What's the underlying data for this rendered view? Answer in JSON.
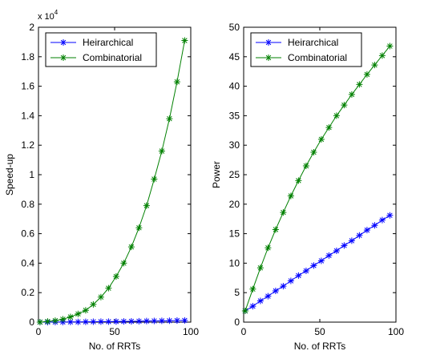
{
  "chart_data": [
    {
      "type": "line",
      "xlabel": "No. of RRTs",
      "ylabel": "Speed-up",
      "xlim": [
        0,
        100
      ],
      "ylim": [
        0,
        20000
      ],
      "y_multiplier_label": "x 10",
      "y_multiplier_exponent": "4",
      "xticks": [
        0,
        50,
        100
      ],
      "xtick_labels": [
        "0",
        "50",
        "100"
      ],
      "yticks": [
        0,
        2000,
        4000,
        6000,
        8000,
        10000,
        12000,
        14000,
        16000,
        18000,
        20000
      ],
      "ytick_labels": [
        "0",
        "0.2",
        "0.4",
        "0.6",
        "0.8",
        "1",
        "1.2",
        "1.4",
        "1.6",
        "1.8",
        "2"
      ],
      "grid": false,
      "legend_position": "top-left",
      "x": [
        1,
        6,
        11,
        16,
        21,
        26,
        31,
        36,
        41,
        46,
        51,
        56,
        61,
        66,
        71,
        76,
        81,
        86,
        91,
        96
      ],
      "series": [
        {
          "name": "Heirarchical",
          "color": "#0000ff",
          "marker": "asterisk",
          "values": [
            0,
            2,
            4,
            7,
            11,
            15,
            20,
            25,
            31,
            37,
            43,
            50,
            57,
            64,
            72,
            80,
            88,
            97,
            106,
            115
          ]
        },
        {
          "name": "Combinatorial",
          "color": "#008000",
          "marker": "asterisk",
          "values": [
            0,
            50,
            100,
            200,
            350,
            560,
            800,
            1200,
            1700,
            2300,
            3100,
            4000,
            5100,
            6400,
            7900,
            9700,
            11600,
            13800,
            16300,
            19100
          ]
        }
      ]
    },
    {
      "type": "line",
      "xlabel": "No. of RRTs",
      "ylabel": "Power",
      "xlim": [
        0,
        100
      ],
      "ylim": [
        0,
        50
      ],
      "xticks": [
        0,
        50,
        100
      ],
      "xtick_labels": [
        "0",
        "50",
        "100"
      ],
      "yticks": [
        0,
        5,
        10,
        15,
        20,
        25,
        30,
        35,
        40,
        45,
        50
      ],
      "ytick_labels": [
        "0",
        "5",
        "10",
        "15",
        "20",
        "25",
        "30",
        "35",
        "40",
        "45",
        "50"
      ],
      "grid": false,
      "legend_position": "top-left",
      "x": [
        1,
        6,
        11,
        16,
        21,
        26,
        31,
        36,
        41,
        46,
        51,
        56,
        61,
        66,
        71,
        76,
        81,
        86,
        91,
        96
      ],
      "series": [
        {
          "name": "Heirarchical",
          "color": "#0000ff",
          "marker": "asterisk",
          "values": [
            1.9,
            2.7,
            3.6,
            4.4,
            5.3,
            6.1,
            7.0,
            7.9,
            8.7,
            9.6,
            10.4,
            11.3,
            12.1,
            13.0,
            13.8,
            14.7,
            15.6,
            16.4,
            17.3,
            18.1
          ]
        },
        {
          "name": "Combinatorial",
          "color": "#008000",
          "marker": "asterisk",
          "values": [
            1.9,
            5.6,
            9.2,
            12.6,
            15.7,
            18.6,
            21.4,
            24.0,
            26.5,
            28.8,
            31.0,
            33.0,
            35.0,
            36.8,
            38.6,
            40.3,
            42.0,
            43.6,
            45.2,
            46.8
          ]
        }
      ]
    }
  ]
}
